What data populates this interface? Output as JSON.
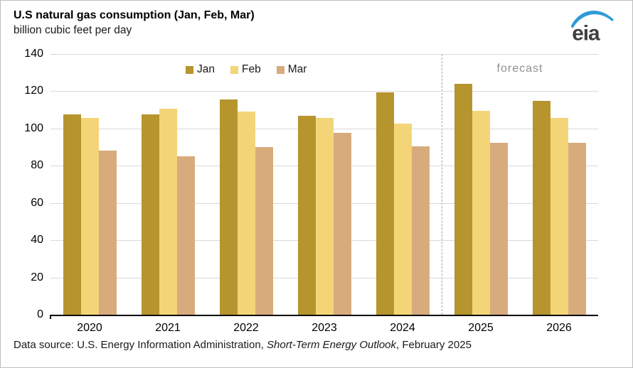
{
  "header": {
    "title": "U.S natural gas consumption (Jan, Feb, Mar)",
    "subtitle": "billion cubic feet per day"
  },
  "logo": {
    "text": "eia",
    "swoosh_color": "#2e9bd6",
    "text_color": "#3f3f3f"
  },
  "chart_data": {
    "type": "bar",
    "title": "U.S natural gas consumption (Jan, Feb, Mar)",
    "ylabel": "billion cubic feet per day",
    "categories": [
      "2020",
      "2021",
      "2022",
      "2023",
      "2024",
      "2025",
      "2026"
    ],
    "series": [
      {
        "name": "Jan",
        "color": "#b6952f",
        "values": [
          107.5,
          107.5,
          115.5,
          107,
          119.5,
          124,
          115
        ]
      },
      {
        "name": "Feb",
        "color": "#f3d578",
        "values": [
          105.5,
          110.5,
          109,
          105.5,
          102.5,
          109.5,
          105.5
        ]
      },
      {
        "name": "Mar",
        "color": "#d8ab7d",
        "values": [
          88,
          85,
          90,
          97.5,
          90.5,
          92.5,
          92.5
        ]
      }
    ],
    "ylim": [
      0,
      140
    ],
    "yticks": [
      0,
      20,
      40,
      60,
      80,
      100,
      120,
      140
    ],
    "grid": true,
    "legend_position": "top-inside-left",
    "forecast": {
      "label": "forecast",
      "starts_after_category": "2024"
    },
    "colors": {
      "gridline": "#d9d9d9",
      "axis": "#000000",
      "forecast_divider": "#a6a6a6",
      "forecast_text": "#8f8f8f"
    }
  },
  "footer": {
    "prefix": "Data source: U.S. Energy Information Administration, ",
    "italic": "Short-Term Energy Outlook",
    "suffix": ", February 2025"
  }
}
